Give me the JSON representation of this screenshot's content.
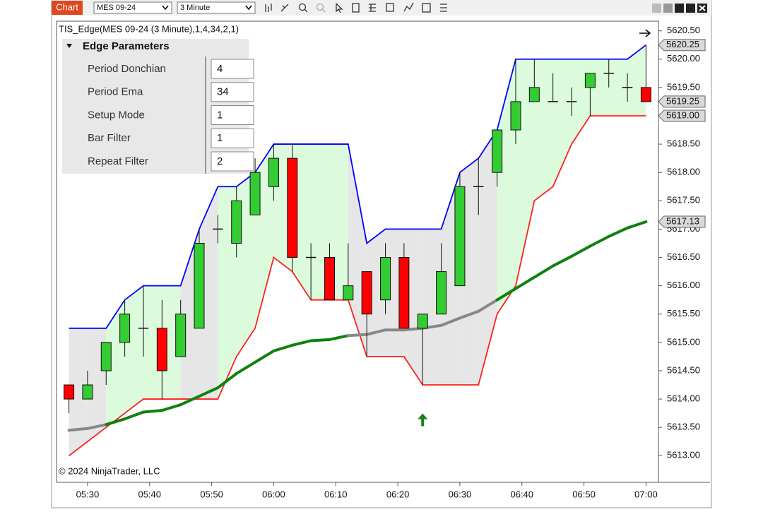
{
  "toolbar": {
    "tab": "Chart",
    "instrument": "MES 09-24",
    "interval": "3 Minute"
  },
  "copyright": "© 2024 NinjaTrader, LLC",
  "parameters": {
    "title": "Edge Parameters",
    "rows": [
      [
        "Period Donchian",
        4
      ],
      [
        "Period Ema",
        34
      ],
      [
        "Setup Mode",
        1
      ],
      [
        "Bar Filter",
        1
      ],
      [
        "Repeat Filter",
        2
      ]
    ]
  },
  "chart_data": {
    "type": "candlestick",
    "title": "TIS_Edge(MES 09-24 (3 Minute),1,4,34,2,1)",
    "x": [
      "05:27",
      "05:30",
      "05:33",
      "05:36",
      "05:39",
      "05:42",
      "05:45",
      "05:48",
      "05:51",
      "05:54",
      "05:57",
      "06:00",
      "06:03",
      "06:06",
      "06:09",
      "06:12",
      "06:15",
      "06:18",
      "06:21",
      "06:24",
      "06:27",
      "06:30",
      "06:33",
      "06:36",
      "06:39",
      "06:42",
      "06:45",
      "06:48",
      "06:51",
      "06:54",
      "06:57",
      "07:00"
    ],
    "open": [
      5614.25,
      5614.0,
      5614.5,
      5615.0,
      5615.25,
      5615.25,
      5614.75,
      5615.25,
      5617.0,
      5616.75,
      5617.25,
      5617.75,
      5618.25,
      5616.5,
      5616.5,
      5615.75,
      5616.25,
      5615.75,
      5616.5,
      5615.25,
      5615.5,
      5616.0,
      5617.75,
      5618.0,
      5618.75,
      5619.25,
      5619.25,
      5619.25,
      5619.5,
      5619.75,
      5619.5,
      5619.5
    ],
    "high": [
      5614.25,
      5614.5,
      5615.0,
      5615.75,
      5616.0,
      5615.75,
      5615.75,
      5617.0,
      5617.25,
      5617.75,
      5618.25,
      5618.5,
      5618.5,
      5616.75,
      5616.75,
      5616.75,
      5616.25,
      5616.75,
      5616.75,
      5615.5,
      5616.75,
      5618.0,
      5618.25,
      5618.75,
      5620.0,
      5620.0,
      5619.75,
      5619.5,
      5619.75,
      5620.0,
      5619.75,
      5620.25
    ],
    "low": [
      5613.75,
      5614.0,
      5614.25,
      5614.75,
      5614.75,
      5614.0,
      5614.75,
      5615.25,
      5616.75,
      5616.5,
      5617.25,
      5617.5,
      5616.25,
      5615.75,
      5615.75,
      5615.75,
      5614.75,
      5615.5,
      5615.25,
      5614.25,
      5615.5,
      5616.0,
      5617.25,
      5617.75,
      5618.5,
      5619.25,
      5619.25,
      5619.0,
      5619.0,
      5619.5,
      5619.25,
      5619.25
    ],
    "close": [
      5614.0,
      5614.25,
      5615.0,
      5615.5,
      5615.25,
      5614.5,
      5615.5,
      5616.75,
      5617.0,
      5617.5,
      5618.0,
      5618.25,
      5616.5,
      5616.5,
      5615.75,
      5616.0,
      5615.5,
      5616.5,
      5615.25,
      5615.5,
      5616.25,
      5617.75,
      5617.75,
      5618.75,
      5619.25,
      5619.5,
      5619.25,
      5619.25,
      5619.75,
      5619.75,
      5619.5,
      5619.25
    ],
    "up_color": "#33cc33",
    "down_color": "#ff0000",
    "channel_upper": {
      "color": "#0000ff",
      "values": [
        5615.25,
        5615.25,
        5615.25,
        5615.75,
        5616.0,
        5616.0,
        5616.0,
        5617.0,
        5617.75,
        5617.75,
        5618.0,
        5618.5,
        5618.5,
        5618.5,
        5618.5,
        5618.5,
        5616.75,
        5617.0,
        5617.0,
        5617.0,
        5617.0,
        5618.0,
        5618.25,
        5618.75,
        5620.0,
        5620.0,
        5620.0,
        5620.0,
        5620.0,
        5620.0,
        5620.0,
        5620.25
      ]
    },
    "channel_lower": {
      "color": "#ff2020",
      "values": [
        5613.0,
        5613.25,
        5613.5,
        5613.75,
        5614.0,
        5614.0,
        5614.0,
        5614.0,
        5614.0,
        5614.75,
        5615.25,
        5616.5,
        5616.25,
        5615.75,
        5615.75,
        5615.75,
        5614.75,
        5614.75,
        5614.75,
        5614.25,
        5614.25,
        5614.25,
        5614.25,
        5615.5,
        5616.0,
        5617.5,
        5617.75,
        5618.5,
        5619.0,
        5619.0,
        5619.0,
        5619.0
      ]
    },
    "ema": {
      "values": [
        5613.45,
        5613.48,
        5613.55,
        5613.65,
        5613.77,
        5613.8,
        5613.9,
        5614.05,
        5614.2,
        5614.45,
        5614.65,
        5614.85,
        5614.95,
        5615.03,
        5615.05,
        5615.12,
        5615.14,
        5615.22,
        5615.22,
        5615.25,
        5615.3,
        5615.43,
        5615.55,
        5615.75,
        5615.95,
        5616.15,
        5616.35,
        5616.52,
        5616.7,
        5616.87,
        5617.02,
        5617.13
      ],
      "colors": [
        "#888888",
        "#888888",
        "#888888",
        "#108010",
        "#108010",
        "#108010",
        "#108010",
        "#108010",
        "#108010",
        "#108010",
        "#108010",
        "#108010",
        "#108010",
        "#108010",
        "#108010",
        "#108010",
        "#888888",
        "#888888",
        "#888888",
        "#888888",
        "#888888",
        "#888888",
        "#888888",
        "#888888",
        "#108010",
        "#108010",
        "#108010",
        "#108010",
        "#108010",
        "#108010",
        "#108010",
        "#108010"
      ]
    },
    "fill_colors": [
      "#e6e6e6",
      "#e6e6e6",
      "#e6e6e6",
      "#dcfadc",
      "#dcfadc",
      "#dcfadc",
      "#dcfadc",
      "#e6e6e6",
      "#e6e6e6",
      "#dcfadc",
      "#dcfadc",
      "#dcfadc",
      "#dcfadc",
      "#dcfadc",
      "#dcfadc",
      "#dcfadc",
      "#e6e6e6",
      "#e6e6e6",
      "#e6e6e6",
      "#e6e6e6",
      "#e6e6e6",
      "#e6e6e6",
      "#e6e6e6",
      "#e6e6e6",
      "#dcfadc",
      "#dcfadc",
      "#dcfadc",
      "#dcfadc",
      "#dcfadc",
      "#dcfadc",
      "#dcfadc",
      "#dcfadc"
    ],
    "xlim": [
      "05:25",
      "07:02"
    ],
    "xticks": [
      "05:30",
      "05:40",
      "05:50",
      "06:00",
      "06:10",
      "06:20",
      "06:30",
      "06:40",
      "06:50",
      "07:00"
    ],
    "ylim": [
      5612.53,
      5620.67
    ],
    "yticks": [
      {
        "value": 5613,
        "label": "5613.00"
      },
      {
        "value": 5613.5,
        "label": "5613.50"
      },
      {
        "value": 5614,
        "label": "5614.00"
      },
      {
        "value": 5614.5,
        "label": "5614.50"
      },
      {
        "value": 5615,
        "label": "5615.00"
      },
      {
        "value": 5615.5,
        "label": "5615.50"
      },
      {
        "value": 5616,
        "label": "5616.00"
      },
      {
        "value": 5616.5,
        "label": "5616.50"
      },
      {
        "value": 5617,
        "label": "5617.00"
      },
      {
        "value": 5617.5,
        "label": "5617.50"
      },
      {
        "value": 5618,
        "label": "5618.00"
      },
      {
        "value": 5618.5,
        "label": "5618.50"
      },
      {
        "value": 5619,
        "label": "5619.00"
      },
      {
        "value": 5619.5,
        "label": "5619.50"
      },
      {
        "value": 5620,
        "label": "5620.00"
      },
      {
        "value": 5620.5,
        "label": "5620.50"
      }
    ],
    "price_markers": [
      5620.25,
      5619.25,
      {
        "value": 5619,
        "label": "5619.00"
      },
      5617.13
    ],
    "signal": {
      "x": "06:24",
      "y": 5613.62,
      "color": "#1a7f1a"
    }
  }
}
